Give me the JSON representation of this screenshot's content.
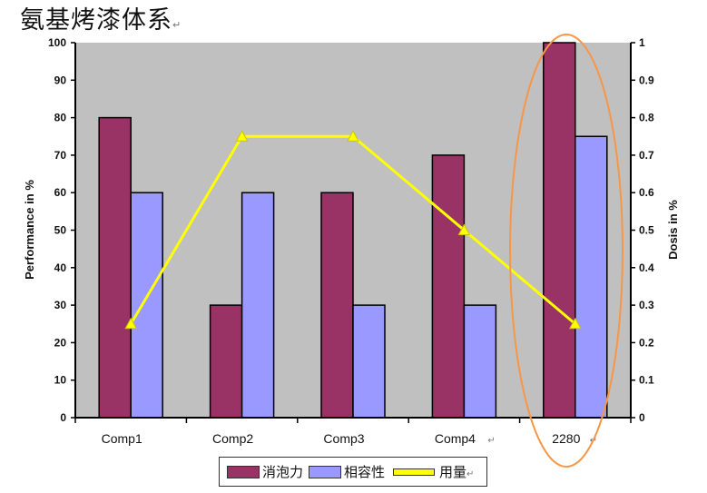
{
  "title": "氨基烤漆体系",
  "return_mark": "↵",
  "chart_data": {
    "type": "bar",
    "categories": [
      "Comp1",
      "Comp2",
      "Comp3",
      "Comp4",
      "2280"
    ],
    "category_marks": [
      "",
      "",
      "",
      "↵",
      "↵"
    ],
    "series": [
      {
        "name": "消泡力",
        "type": "bar",
        "axis": "left",
        "values": [
          80,
          30,
          60,
          70,
          100
        ],
        "color": "#993366"
      },
      {
        "name": "相容性",
        "type": "bar",
        "axis": "left",
        "values": [
          60,
          60,
          30,
          30,
          75
        ],
        "color": "#9999ff"
      },
      {
        "name": "用量",
        "type": "line",
        "axis": "right",
        "values": [
          0.25,
          0.75,
          0.75,
          0.5,
          0.25
        ],
        "color": "#ffff00"
      }
    ],
    "ylabel": "Performance in %",
    "y2label": "Dosis in %",
    "ylim": [
      0,
      100
    ],
    "y2lim": [
      0,
      1
    ],
    "yticks": [
      0,
      10,
      20,
      30,
      40,
      50,
      60,
      70,
      80,
      90,
      100
    ],
    "y2ticks": [
      "0",
      "0.1",
      "0.2",
      "0.3",
      "0.4",
      "0.5",
      "0.6",
      "0.7",
      "0.8",
      "0.9",
      "1"
    ],
    "plot_background": "#c0c0c0",
    "highlight_color": "#f79646",
    "highlight_category": "2280",
    "legend": "bottom"
  }
}
